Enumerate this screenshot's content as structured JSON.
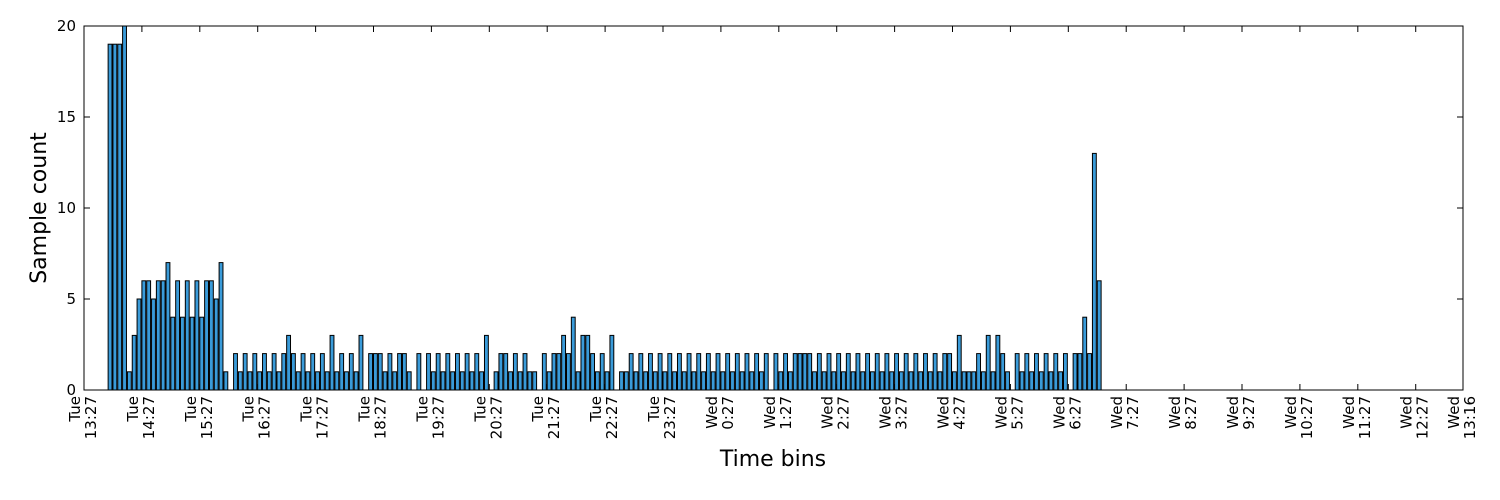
{
  "chart_data": {
    "type": "bar",
    "title": "",
    "xlabel": "Time bins",
    "ylabel": "Sample count",
    "ylim": [
      0,
      20
    ],
    "yticks": [
      0,
      5,
      10,
      15,
      20
    ],
    "bar_color": "#3a9bd9",
    "grid": false,
    "x_range_minutes": [
      0,
      1429
    ],
    "xticks": [
      {
        "day": "Tue",
        "time": "13:27",
        "minute": 0
      },
      {
        "day": "Tue",
        "time": "14:27",
        "minute": 60
      },
      {
        "day": "Tue",
        "time": "15:27",
        "minute": 120
      },
      {
        "day": "Tue",
        "time": "16:27",
        "minute": 180
      },
      {
        "day": "Tue",
        "time": "17:27",
        "minute": 240
      },
      {
        "day": "Tue",
        "time": "18:27",
        "minute": 300
      },
      {
        "day": "Tue",
        "time": "19:27",
        "minute": 360
      },
      {
        "day": "Tue",
        "time": "20:27",
        "minute": 420
      },
      {
        "day": "Tue",
        "time": "21:27",
        "minute": 480
      },
      {
        "day": "Tue",
        "time": "22:27",
        "minute": 540
      },
      {
        "day": "Tue",
        "time": "23:27",
        "minute": 600
      },
      {
        "day": "Wed",
        "time": "0:27",
        "minute": 660
      },
      {
        "day": "Wed",
        "time": "1:27",
        "minute": 720
      },
      {
        "day": "Wed",
        "time": "2:27",
        "minute": 780
      },
      {
        "day": "Wed",
        "time": "3:27",
        "minute": 840
      },
      {
        "day": "Wed",
        "time": "4:27",
        "minute": 900
      },
      {
        "day": "Wed",
        "time": "5:27",
        "minute": 960
      },
      {
        "day": "Wed",
        "time": "6:27",
        "minute": 1020
      },
      {
        "day": "Wed",
        "time": "7:27",
        "minute": 1080
      },
      {
        "day": "Wed",
        "time": "8:27",
        "minute": 1140
      },
      {
        "day": "Wed",
        "time": "9:27",
        "minute": 1200
      },
      {
        "day": "Wed",
        "time": "10:27",
        "minute": 1260
      },
      {
        "day": "Wed",
        "time": "11:27",
        "minute": 1320
      },
      {
        "day": "Wed",
        "time": "12:27",
        "minute": 1380
      },
      {
        "day": "Wed",
        "time": "13:16",
        "minute": 1429
      }
    ],
    "bar_width_minutes": 4,
    "bars": [
      {
        "t": 25,
        "v": 19
      },
      {
        "t": 30,
        "v": 19
      },
      {
        "t": 35,
        "v": 19
      },
      {
        "t": 40,
        "v": 20
      },
      {
        "t": 45,
        "v": 1
      },
      {
        "t": 50,
        "v": 3
      },
      {
        "t": 55,
        "v": 5
      },
      {
        "t": 60,
        "v": 6
      },
      {
        "t": 65,
        "v": 6
      },
      {
        "t": 70,
        "v": 5
      },
      {
        "t": 75,
        "v": 6
      },
      {
        "t": 80,
        "v": 6
      },
      {
        "t": 85,
        "v": 7
      },
      {
        "t": 90,
        "v": 4
      },
      {
        "t": 95,
        "v": 6
      },
      {
        "t": 100,
        "v": 4
      },
      {
        "t": 105,
        "v": 6
      },
      {
        "t": 110,
        "v": 4
      },
      {
        "t": 115,
        "v": 6
      },
      {
        "t": 120,
        "v": 4
      },
      {
        "t": 125,
        "v": 6
      },
      {
        "t": 130,
        "v": 6
      },
      {
        "t": 135,
        "v": 5
      },
      {
        "t": 140,
        "v": 7
      },
      {
        "t": 145,
        "v": 1
      },
      {
        "t": 155,
        "v": 2
      },
      {
        "t": 160,
        "v": 1
      },
      {
        "t": 165,
        "v": 2
      },
      {
        "t": 170,
        "v": 1
      },
      {
        "t": 175,
        "v": 2
      },
      {
        "t": 180,
        "v": 1
      },
      {
        "t": 185,
        "v": 2
      },
      {
        "t": 190,
        "v": 1
      },
      {
        "t": 195,
        "v": 2
      },
      {
        "t": 200,
        "v": 1
      },
      {
        "t": 205,
        "v": 2
      },
      {
        "t": 210,
        "v": 3
      },
      {
        "t": 215,
        "v": 2
      },
      {
        "t": 220,
        "v": 1
      },
      {
        "t": 225,
        "v": 2
      },
      {
        "t": 230,
        "v": 1
      },
      {
        "t": 235,
        "v": 2
      },
      {
        "t": 240,
        "v": 1
      },
      {
        "t": 245,
        "v": 2
      },
      {
        "t": 250,
        "v": 1
      },
      {
        "t": 255,
        "v": 3
      },
      {
        "t": 260,
        "v": 1
      },
      {
        "t": 265,
        "v": 2
      },
      {
        "t": 270,
        "v": 1
      },
      {
        "t": 275,
        "v": 2
      },
      {
        "t": 280,
        "v": 1
      },
      {
        "t": 285,
        "v": 3
      },
      {
        "t": 295,
        "v": 2
      },
      {
        "t": 300,
        "v": 2
      },
      {
        "t": 305,
        "v": 2
      },
      {
        "t": 310,
        "v": 1
      },
      {
        "t": 315,
        "v": 2
      },
      {
        "t": 320,
        "v": 1
      },
      {
        "t": 325,
        "v": 2
      },
      {
        "t": 330,
        "v": 2
      },
      {
        "t": 335,
        "v": 1
      },
      {
        "t": 345,
        "v": 2
      },
      {
        "t": 355,
        "v": 2
      },
      {
        "t": 360,
        "v": 1
      },
      {
        "t": 365,
        "v": 2
      },
      {
        "t": 370,
        "v": 1
      },
      {
        "t": 375,
        "v": 2
      },
      {
        "t": 380,
        "v": 1
      },
      {
        "t": 385,
        "v": 2
      },
      {
        "t": 390,
        "v": 1
      },
      {
        "t": 395,
        "v": 2
      },
      {
        "t": 400,
        "v": 1
      },
      {
        "t": 405,
        "v": 2
      },
      {
        "t": 410,
        "v": 1
      },
      {
        "t": 415,
        "v": 3
      },
      {
        "t": 425,
        "v": 1
      },
      {
        "t": 430,
        "v": 2
      },
      {
        "t": 435,
        "v": 2
      },
      {
        "t": 440,
        "v": 1
      },
      {
        "t": 445,
        "v": 2
      },
      {
        "t": 450,
        "v": 1
      },
      {
        "t": 455,
        "v": 2
      },
      {
        "t": 460,
        "v": 1
      },
      {
        "t": 465,
        "v": 1
      },
      {
        "t": 475,
        "v": 2
      },
      {
        "t": 480,
        "v": 1
      },
      {
        "t": 485,
        "v": 2
      },
      {
        "t": 490,
        "v": 2
      },
      {
        "t": 495,
        "v": 3
      },
      {
        "t": 500,
        "v": 2
      },
      {
        "t": 505,
        "v": 4
      },
      {
        "t": 510,
        "v": 1
      },
      {
        "t": 515,
        "v": 3
      },
      {
        "t": 520,
        "v": 3
      },
      {
        "t": 525,
        "v": 2
      },
      {
        "t": 530,
        "v": 1
      },
      {
        "t": 535,
        "v": 2
      },
      {
        "t": 540,
        "v": 1
      },
      {
        "t": 545,
        "v": 3
      },
      {
        "t": 555,
        "v": 1
      },
      {
        "t": 560,
        "v": 1
      },
      {
        "t": 565,
        "v": 2
      },
      {
        "t": 570,
        "v": 1
      },
      {
        "t": 575,
        "v": 2
      },
      {
        "t": 580,
        "v": 1
      },
      {
        "t": 585,
        "v": 2
      },
      {
        "t": 590,
        "v": 1
      },
      {
        "t": 595,
        "v": 2
      },
      {
        "t": 600,
        "v": 1
      },
      {
        "t": 605,
        "v": 2
      },
      {
        "t": 610,
        "v": 1
      },
      {
        "t": 615,
        "v": 2
      },
      {
        "t": 620,
        "v": 1
      },
      {
        "t": 625,
        "v": 2
      },
      {
        "t": 630,
        "v": 1
      },
      {
        "t": 635,
        "v": 2
      },
      {
        "t": 640,
        "v": 1
      },
      {
        "t": 645,
        "v": 2
      },
      {
        "t": 650,
        "v": 1
      },
      {
        "t": 655,
        "v": 2
      },
      {
        "t": 660,
        "v": 1
      },
      {
        "t": 665,
        "v": 2
      },
      {
        "t": 670,
        "v": 1
      },
      {
        "t": 675,
        "v": 2
      },
      {
        "t": 680,
        "v": 1
      },
      {
        "t": 685,
        "v": 2
      },
      {
        "t": 690,
        "v": 1
      },
      {
        "t": 695,
        "v": 2
      },
      {
        "t": 700,
        "v": 1
      },
      {
        "t": 705,
        "v": 2
      },
      {
        "t": 715,
        "v": 2
      },
      {
        "t": 720,
        "v": 1
      },
      {
        "t": 725,
        "v": 2
      },
      {
        "t": 730,
        "v": 1
      },
      {
        "t": 735,
        "v": 2
      },
      {
        "t": 740,
        "v": 2
      },
      {
        "t": 745,
        "v": 2
      },
      {
        "t": 750,
        "v": 2
      },
      {
        "t": 755,
        "v": 1
      },
      {
        "t": 760,
        "v": 2
      },
      {
        "t": 765,
        "v": 1
      },
      {
        "t": 770,
        "v": 2
      },
      {
        "t": 775,
        "v": 1
      },
      {
        "t": 780,
        "v": 2
      },
      {
        "t": 785,
        "v": 1
      },
      {
        "t": 790,
        "v": 2
      },
      {
        "t": 795,
        "v": 1
      },
      {
        "t": 800,
        "v": 2
      },
      {
        "t": 805,
        "v": 1
      },
      {
        "t": 810,
        "v": 2
      },
      {
        "t": 815,
        "v": 1
      },
      {
        "t": 820,
        "v": 2
      },
      {
        "t": 825,
        "v": 1
      },
      {
        "t": 830,
        "v": 2
      },
      {
        "t": 835,
        "v": 1
      },
      {
        "t": 840,
        "v": 2
      },
      {
        "t": 845,
        "v": 1
      },
      {
        "t": 850,
        "v": 2
      },
      {
        "t": 855,
        "v": 1
      },
      {
        "t": 860,
        "v": 2
      },
      {
        "t": 865,
        "v": 1
      },
      {
        "t": 870,
        "v": 2
      },
      {
        "t": 875,
        "v": 1
      },
      {
        "t": 880,
        "v": 2
      },
      {
        "t": 885,
        "v": 1
      },
      {
        "t": 890,
        "v": 2
      },
      {
        "t": 895,
        "v": 2
      },
      {
        "t": 900,
        "v": 1
      },
      {
        "t": 905,
        "v": 3
      },
      {
        "t": 910,
        "v": 1
      },
      {
        "t": 915,
        "v": 1
      },
      {
        "t": 920,
        "v": 1
      },
      {
        "t": 925,
        "v": 2
      },
      {
        "t": 930,
        "v": 1
      },
      {
        "t": 935,
        "v": 3
      },
      {
        "t": 940,
        "v": 1
      },
      {
        "t": 945,
        "v": 3
      },
      {
        "t": 950,
        "v": 2
      },
      {
        "t": 955,
        "v": 1
      },
      {
        "t": 965,
        "v": 2
      },
      {
        "t": 970,
        "v": 1
      },
      {
        "t": 975,
        "v": 2
      },
      {
        "t": 980,
        "v": 1
      },
      {
        "t": 985,
        "v": 2
      },
      {
        "t": 990,
        "v": 1
      },
      {
        "t": 995,
        "v": 2
      },
      {
        "t": 1000,
        "v": 1
      },
      {
        "t": 1005,
        "v": 2
      },
      {
        "t": 1010,
        "v": 1
      },
      {
        "t": 1015,
        "v": 2
      },
      {
        "t": 1025,
        "v": 2
      },
      {
        "t": 1030,
        "v": 2
      },
      {
        "t": 1035,
        "v": 4
      },
      {
        "t": 1040,
        "v": 2
      },
      {
        "t": 1045,
        "v": 13
      },
      {
        "t": 1050,
        "v": 6
      }
    ]
  }
}
